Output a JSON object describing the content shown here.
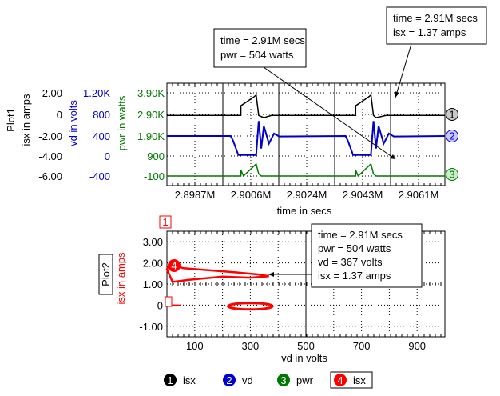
{
  "chart_data": [
    {
      "id": "Plot1",
      "type": "line",
      "title": "Plot1",
      "xlabel": "time in secs",
      "x_ticks": [
        "2.8987M",
        "2.9006M",
        "2.9024M",
        "2.9043M",
        "2.9061M"
      ],
      "y_axes": [
        {
          "label": "isx in amps",
          "color": "#000000",
          "ticks": [
            "2.00",
            "0",
            "-2.00",
            "-4.00",
            "-6.00"
          ]
        },
        {
          "label": "vd in volts",
          "color": "#0000cc",
          "ticks": [
            "1.20K",
            "800",
            "400",
            "0",
            "-400"
          ]
        },
        {
          "label": "pwr in watts",
          "color": "#007700",
          "ticks": [
            "3.90K",
            "2.90K",
            "1.90K",
            "900",
            "-100"
          ]
        }
      ],
      "series": [
        {
          "name": "isx",
          "marker": "1",
          "color": "#000000",
          "x": [
            2.8976,
            2.9005,
            2.9005,
            2.901,
            2.9011,
            2.9012,
            2.9014,
            2.9017,
            2.905,
            2.905,
            2.9055,
            2.9056,
            2.9057,
            2.9058,
            2.9062,
            2.9085
          ],
          "y": [
            -0.1,
            -0.1,
            0.8,
            1.6,
            1.8,
            -0.1,
            -0.3,
            -0.1,
            -0.1,
            0.8,
            1.6,
            1.8,
            -0.1,
            -0.3,
            -0.1,
            -0.1
          ]
        },
        {
          "name": "vd",
          "marker": "2",
          "color": "#0000cc",
          "x": [
            2.8976,
            2.9001,
            2.9002,
            2.9004,
            2.9011,
            2.9012,
            2.9013,
            2.9014,
            2.9016,
            2.9018,
            2.902,
            2.9046,
            2.9047,
            2.9049,
            2.9056,
            2.9057,
            2.9058,
            2.9059,
            2.9061,
            2.9063,
            2.9065,
            2.9085
          ],
          "y": [
            400,
            400,
            300,
            20,
            20,
            700,
            150,
            600,
            250,
            450,
            390,
            400,
            300,
            20,
            20,
            700,
            150,
            600,
            250,
            450,
            390,
            400
          ]
        },
        {
          "name": "pwr",
          "marker": "3",
          "color": "#007700",
          "x": [
            2.8976,
            2.9005,
            2.9005,
            2.9006,
            2.9011,
            2.9012,
            2.9013,
            2.905,
            2.905,
            2.9051,
            2.9056,
            2.9057,
            2.9058,
            2.9085
          ],
          "y": [
            -100,
            -100,
            200,
            -100,
            504,
            0,
            -100,
            -100,
            200,
            -100,
            504,
            0,
            -100,
            -100
          ]
        }
      ],
      "annotations": [
        {
          "lines": [
            "time = 2.91M secs",
            "pwr = 504 watts"
          ]
        },
        {
          "lines": [
            "time = 2.91M secs",
            "isx = 1.37 amps"
          ]
        }
      ]
    },
    {
      "id": "Plot2",
      "type": "line",
      "title": "Plot2",
      "xlabel": "vd in volts",
      "ylabel": "isx in amps",
      "xlim": [
        0,
        1000
      ],
      "ylim": [
        -1.5,
        3.5
      ],
      "x_ticks": [
        "100",
        "300",
        "500",
        "700",
        "900"
      ],
      "y_ticks": [
        "3.00",
        "2.00",
        "1.00",
        "0",
        "-1.00"
      ],
      "plot_marker": "1",
      "series": [
        {
          "name": "isx",
          "marker": "4",
          "color": "#ff0000",
          "x": [
            367,
            330,
            250,
            150,
            60,
            10,
            0,
            20,
            80,
            200,
            300,
            367
          ],
          "y": [
            1.37,
            1.45,
            1.55,
            1.65,
            1.75,
            1.9,
            1.7,
            1.1,
            1.2,
            1.35,
            1.3,
            1.37
          ]
        }
      ],
      "annotation": {
        "lines": [
          "time = 2.91M secs",
          "pwr = 504 watts",
          "vd = 367 volts",
          "isx = 1.37 amps"
        ]
      }
    }
  ],
  "legend": [
    {
      "marker": "1",
      "name": "isx",
      "color": "#000000"
    },
    {
      "marker": "2",
      "name": "vd",
      "color": "#0000cc"
    },
    {
      "marker": "3",
      "name": "pwr",
      "color": "#007700"
    },
    {
      "marker": "4",
      "name": "isx",
      "color": "#ff0000"
    }
  ]
}
